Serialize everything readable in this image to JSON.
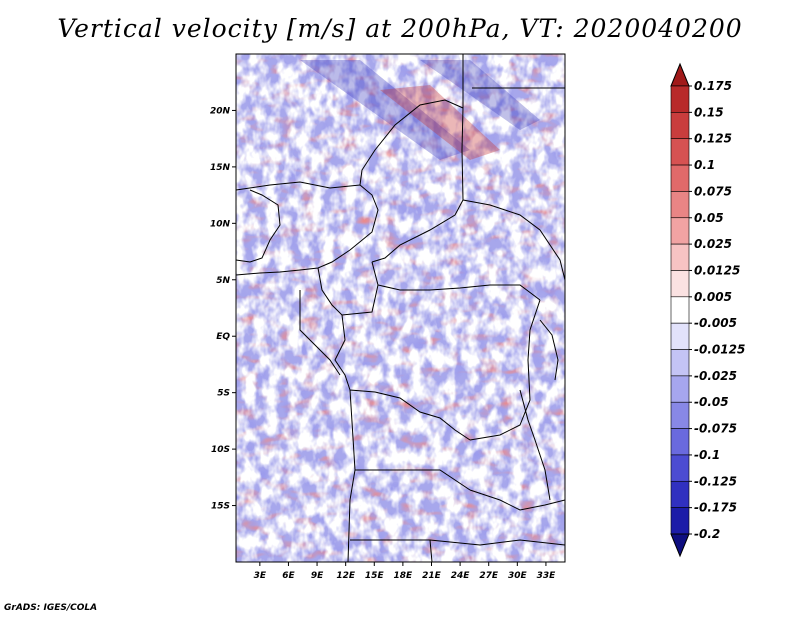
{
  "title": "Vertical velocity [m/s] at 200hPa, VT: 2020040200",
  "credit": "GrADS: IGES/COLA",
  "map": {
    "lat_labels": [
      "20N",
      "15N",
      "10N",
      "5N",
      "EQ",
      "5S",
      "10S",
      "15S"
    ],
    "lat_values": [
      20,
      15,
      10,
      5,
      0,
      -5,
      -10,
      -15
    ],
    "lon_labels": [
      "3E",
      "6E",
      "9E",
      "12E",
      "15E",
      "18E",
      "21E",
      "24E",
      "27E",
      "30E",
      "33E"
    ],
    "lon_values": [
      3,
      6,
      9,
      12,
      15,
      18,
      21,
      24,
      27,
      30,
      33
    ],
    "lon_range": [
      0.5,
      35
    ],
    "lat_range": [
      -20,
      25
    ]
  },
  "colorbar": {
    "labels": [
      "0.175",
      "0.15",
      "0.125",
      "0.1",
      "0.075",
      "0.05",
      "0.025",
      "0.0125",
      "0.005",
      "-0.005",
      "-0.0125",
      "-0.025",
      "-0.05",
      "-0.075",
      "-0.1",
      "-0.125",
      "-0.175",
      "-0.2"
    ],
    "colors": [
      "#a11a1a",
      "#b82a2a",
      "#c93d3d",
      "#d65252",
      "#e06a6a",
      "#e98585",
      "#f1a3a3",
      "#f7c3c3",
      "#fbe2e2",
      "#ffffff",
      "#e2e2fb",
      "#c4c4f5",
      "#a6a6ee",
      "#8888e6",
      "#6a6ade",
      "#4c4cd2",
      "#3030c0",
      "#1c1ca8",
      "#0e0e80"
    ]
  }
}
